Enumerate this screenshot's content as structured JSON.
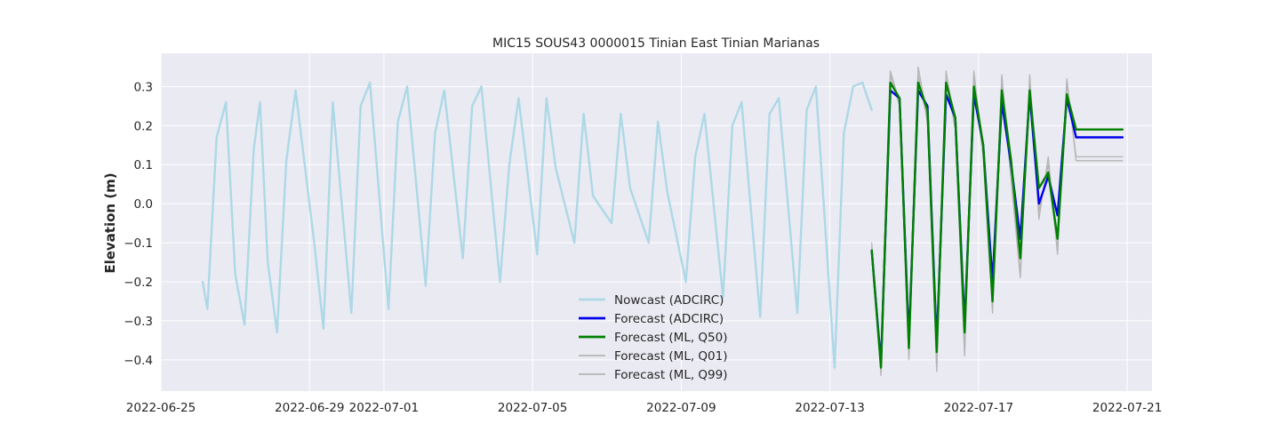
{
  "chart_data": {
    "type": "line",
    "title": "MIC15 SOUS43 0000015 Tinian East Tinian Marianas",
    "xlabel": "",
    "ylabel": "Elevation (m)",
    "xlim": [
      "2022-06-25T00:00",
      "2022-07-21T16:00"
    ],
    "ylim": [
      -0.48,
      0.385
    ],
    "x_ticks": [
      "2022-06-25",
      "2022-06-29",
      "2022-07-01",
      "2022-07-05",
      "2022-07-09",
      "2022-07-13",
      "2022-07-17",
      "2022-07-21"
    ],
    "y_ticks": [
      -0.4,
      -0.3,
      -0.2,
      -0.1,
      0.0,
      0.1,
      0.2,
      0.3
    ],
    "y_tick_labels": [
      "−0.4",
      "−0.3",
      "−0.2",
      "−0.1",
      "0.0",
      "0.1",
      "0.2",
      "0.3"
    ],
    "grid": true,
    "legend_position": "lower-center",
    "background": "#eaeaf2",
    "series": [
      {
        "name": "Nowcast (ADCIRC)",
        "color": "#add8e6",
        "width": 2.4,
        "x": [
          "2022-06-26T03:00",
          "2022-06-26T06:00",
          "2022-06-26T12:00",
          "2022-06-26T18:00",
          "2022-06-27T00:00",
          "2022-06-27T06:00",
          "2022-06-27T12:00",
          "2022-06-27T16:00",
          "2022-06-27T21:00",
          "2022-06-28T03:00",
          "2022-06-28T09:00",
          "2022-06-28T15:00",
          "2022-06-29T03:00",
          "2022-06-29T09:00",
          "2022-06-29T15:00",
          "2022-06-30T03:00",
          "2022-06-30T09:00",
          "2022-06-30T15:00",
          "2022-07-01T03:00",
          "2022-07-01T09:00",
          "2022-07-01T15:00",
          "2022-07-02T03:00",
          "2022-07-02T09:00",
          "2022-07-02T15:00",
          "2022-07-03T03:00",
          "2022-07-03T09:00",
          "2022-07-03T15:00",
          "2022-07-04T03:00",
          "2022-07-04T09:00",
          "2022-07-04T15:00",
          "2022-07-05T03:00",
          "2022-07-05T09:00",
          "2022-07-05T15:00",
          "2022-07-06T03:00",
          "2022-07-06T09:00",
          "2022-07-06T15:00",
          "2022-07-07T03:00",
          "2022-07-07T09:00",
          "2022-07-07T15:00",
          "2022-07-08T03:00",
          "2022-07-08T09:00",
          "2022-07-08T15:00",
          "2022-07-09T03:00",
          "2022-07-09T09:00",
          "2022-07-09T15:00",
          "2022-07-10T03:00",
          "2022-07-10T09:00",
          "2022-07-10T15:00",
          "2022-07-11T03:00",
          "2022-07-11T09:00",
          "2022-07-11T15:00",
          "2022-07-12T03:00",
          "2022-07-12T09:00",
          "2022-07-12T15:00",
          "2022-07-13T03:00",
          "2022-07-13T09:00",
          "2022-07-13T15:00",
          "2022-07-13T21:00",
          "2022-07-14T03:00"
        ],
        "y": [
          -0.2,
          -0.27,
          0.17,
          0.26,
          -0.18,
          -0.31,
          0.14,
          0.26,
          -0.15,
          -0.33,
          0.11,
          0.29,
          -0.1,
          -0.32,
          0.26,
          -0.28,
          0.25,
          0.31,
          -0.27,
          0.21,
          0.3,
          -0.21,
          0.18,
          0.29,
          -0.14,
          0.25,
          0.3,
          -0.2,
          0.1,
          0.27,
          -0.13,
          0.27,
          0.09,
          -0.1,
          0.23,
          0.02,
          -0.05,
          0.23,
          0.04,
          -0.1,
          0.21,
          0.03,
          -0.2,
          0.12,
          0.23,
          -0.24,
          0.2,
          0.26,
          -0.29,
          0.23,
          0.27,
          -0.28,
          0.24,
          0.3,
          -0.42,
          0.18,
          0.3,
          0.31,
          0.24
        ]
      },
      {
        "name": "Forecast (ADCIRC)",
        "color": "#0000ee",
        "width": 2.4,
        "x": [
          "2022-07-14T03:00",
          "2022-07-14T09:00",
          "2022-07-14T15:00",
          "2022-07-14T21:00",
          "2022-07-15T03:00",
          "2022-07-15T09:00",
          "2022-07-15T15:00",
          "2022-07-15T21:00",
          "2022-07-16T03:00",
          "2022-07-16T09:00",
          "2022-07-16T15:00",
          "2022-07-16T21:00",
          "2022-07-17T03:00",
          "2022-07-17T09:00",
          "2022-07-17T15:00",
          "2022-07-17T21:00",
          "2022-07-18T03:00",
          "2022-07-18T09:00",
          "2022-07-18T15:00",
          "2022-07-18T21:00",
          "2022-07-19T03:00",
          "2022-07-19T09:00",
          "2022-07-19T15:00",
          "2022-07-19T21:00",
          "2022-07-20T03:00",
          "2022-07-20T09:00",
          "2022-07-20T15:00",
          "2022-07-20T21:00"
        ],
        "y": [
          -0.12,
          -0.41,
          0.29,
          0.27,
          -0.35,
          0.29,
          0.25,
          -0.36,
          0.28,
          0.22,
          -0.31,
          0.28,
          0.15,
          -0.2,
          0.26,
          0.1,
          -0.09,
          0.28,
          0.0,
          0.07,
          -0.03,
          0.27,
          0.17,
          0.17,
          0.17,
          0.17,
          0.17,
          0.17
        ]
      },
      {
        "name": "Forecast (ML, Q50)",
        "color": "#008000",
        "width": 2.4,
        "x": [
          "2022-07-14T03:00",
          "2022-07-14T09:00",
          "2022-07-14T15:00",
          "2022-07-14T21:00",
          "2022-07-15T03:00",
          "2022-07-15T09:00",
          "2022-07-15T15:00",
          "2022-07-15T21:00",
          "2022-07-16T03:00",
          "2022-07-16T09:00",
          "2022-07-16T15:00",
          "2022-07-16T21:00",
          "2022-07-17T03:00",
          "2022-07-17T09:00",
          "2022-07-17T15:00",
          "2022-07-17T21:00",
          "2022-07-18T03:00",
          "2022-07-18T09:00",
          "2022-07-18T15:00",
          "2022-07-18T21:00",
          "2022-07-19T03:00",
          "2022-07-19T09:00",
          "2022-07-19T15:00",
          "2022-07-19T21:00",
          "2022-07-20T03:00",
          "2022-07-20T09:00",
          "2022-07-20T15:00",
          "2022-07-20T21:00"
        ],
        "y": [
          -0.12,
          -0.42,
          0.31,
          0.27,
          -0.37,
          0.31,
          0.24,
          -0.38,
          0.31,
          0.22,
          -0.33,
          0.3,
          0.15,
          -0.25,
          0.29,
          0.11,
          -0.14,
          0.29,
          0.04,
          0.08,
          -0.09,
          0.28,
          0.19,
          0.19,
          0.19,
          0.19,
          0.19,
          0.19
        ]
      },
      {
        "name": "Forecast (ML, Q01)",
        "color": "#b4b4b4",
        "width": 1.3,
        "x": [
          "2022-07-14T03:00",
          "2022-07-14T09:00",
          "2022-07-14T15:00",
          "2022-07-14T21:00",
          "2022-07-15T03:00",
          "2022-07-15T09:00",
          "2022-07-15T15:00",
          "2022-07-15T21:00",
          "2022-07-16T03:00",
          "2022-07-16T09:00",
          "2022-07-16T15:00",
          "2022-07-16T21:00",
          "2022-07-17T03:00",
          "2022-07-17T09:00",
          "2022-07-17T15:00",
          "2022-07-17T21:00",
          "2022-07-18T03:00",
          "2022-07-18T09:00",
          "2022-07-18T15:00",
          "2022-07-18T21:00",
          "2022-07-19T03:00",
          "2022-07-19T09:00",
          "2022-07-19T15:00",
          "2022-07-19T21:00",
          "2022-07-20T03:00",
          "2022-07-20T09:00",
          "2022-07-20T15:00",
          "2022-07-20T21:00"
        ],
        "y": [
          -0.11,
          -0.44,
          0.33,
          0.25,
          -0.4,
          0.33,
          0.21,
          -0.43,
          0.32,
          0.19,
          -0.39,
          0.33,
          0.12,
          -0.28,
          0.32,
          0.06,
          -0.19,
          0.32,
          -0.04,
          0.12,
          -0.13,
          0.31,
          0.12,
          0.12,
          0.12,
          0.12,
          0.12,
          0.12
        ]
      },
      {
        "name": "Forecast (ML, Q99)",
        "color": "#b4b4b4",
        "width": 1.3,
        "x": [
          "2022-07-14T03:00",
          "2022-07-14T09:00",
          "2022-07-14T15:00",
          "2022-07-14T21:00",
          "2022-07-15T03:00",
          "2022-07-15T09:00",
          "2022-07-15T15:00",
          "2022-07-15T21:00",
          "2022-07-16T03:00",
          "2022-07-16T09:00",
          "2022-07-16T15:00",
          "2022-07-16T21:00",
          "2022-07-17T03:00",
          "2022-07-17T09:00",
          "2022-07-17T15:00",
          "2022-07-17T21:00",
          "2022-07-18T03:00",
          "2022-07-18T09:00",
          "2022-07-18T15:00",
          "2022-07-18T21:00",
          "2022-07-19T03:00",
          "2022-07-19T09:00",
          "2022-07-19T15:00",
          "2022-07-19T21:00",
          "2022-07-20T03:00",
          "2022-07-20T09:00",
          "2022-07-20T15:00",
          "2022-07-20T21:00"
        ],
        "y": [
          -0.1,
          -0.43,
          0.34,
          0.26,
          -0.39,
          0.35,
          0.22,
          -0.42,
          0.34,
          0.2,
          -0.38,
          0.34,
          0.13,
          -0.27,
          0.33,
          0.07,
          -0.18,
          0.33,
          -0.02,
          0.1,
          -0.12,
          0.32,
          0.11,
          0.11,
          0.11,
          0.11,
          0.11,
          0.11
        ]
      }
    ]
  }
}
